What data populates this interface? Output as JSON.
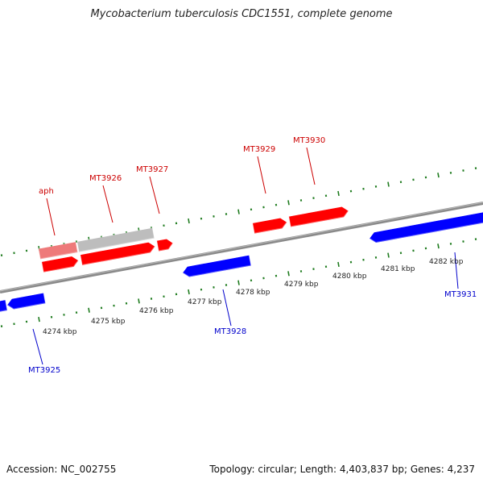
{
  "title": "Mycobacterium tuberculosis CDC1551, complete genome",
  "footer": {
    "accession": "Accession: NC_002755",
    "summary": "Topology: circular; Length: 4,403,837 bp; Genes: 4,237"
  },
  "colors": {
    "forward_strand": "#ff0000",
    "reverse_strand": "#0000ff",
    "pale_forward": "#ee7a7a",
    "grey_feature": "#bdbdbd",
    "backbone": "#8a8a8a",
    "tick_marks": "#1e7b1e",
    "forward_label": "#cc0000",
    "reverse_label": "#0000cc"
  },
  "scale": {
    "unit": "kbp",
    "tick_labels": [
      "4274 kbp",
      "4275 kbp",
      "4276 kbp",
      "4277 kbp",
      "4278 kbp",
      "4279 kbp",
      "4280 kbp",
      "4281 kbp",
      "4282 kbp"
    ]
  },
  "gene_labels": {
    "forward": [
      "aph",
      "MT3926",
      "MT3927",
      "MT3929",
      "MT3930"
    ],
    "reverse": [
      "MT3925",
      "MT3928",
      "MT3931"
    ]
  }
}
